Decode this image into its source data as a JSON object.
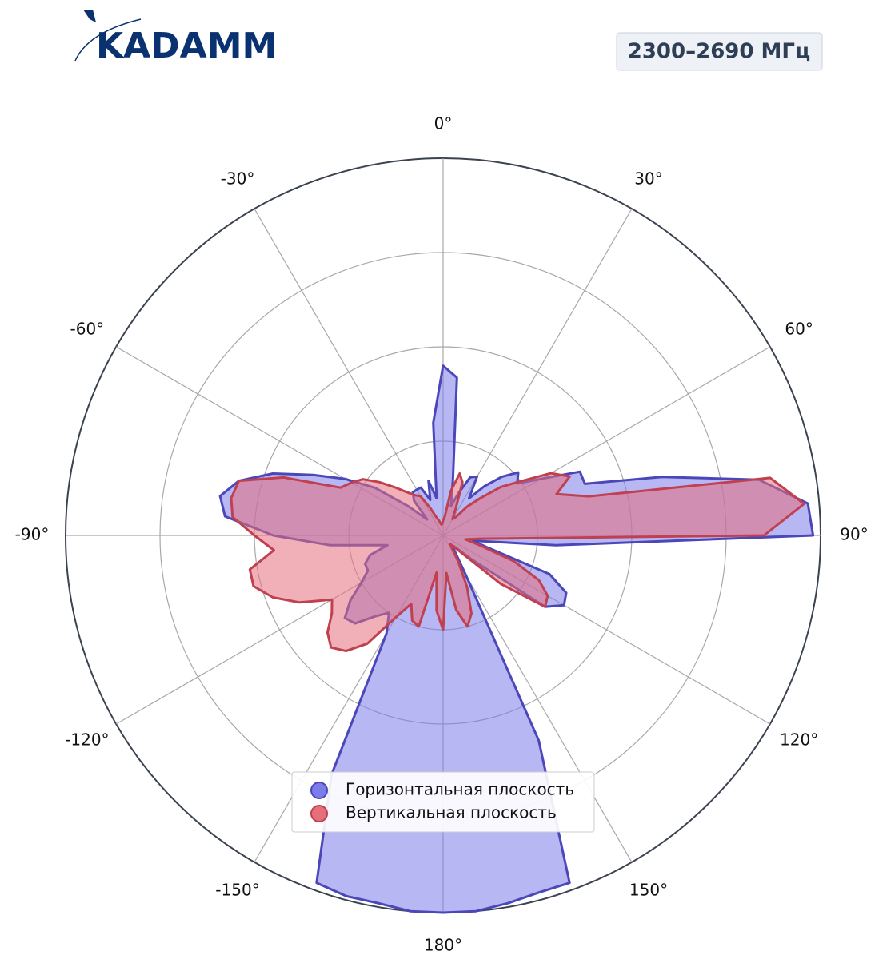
{
  "header": {
    "logo": "KADAMM",
    "badge": "2300–2690 МГц"
  },
  "chart_data": {
    "type": "polar",
    "theta": [
      0,
      5,
      10,
      15,
      20,
      25,
      30,
      35,
      40,
      45,
      50,
      55,
      60,
      65,
      70,
      75,
      80,
      85,
      90,
      95,
      100,
      105,
      110,
      115,
      120,
      125,
      130,
      135,
      140,
      145,
      150,
      155,
      160,
      165,
      170,
      175,
      180,
      185,
      190,
      195,
      200,
      205,
      210,
      215,
      220,
      225,
      230,
      235,
      240,
      245,
      250,
      255,
      260,
      265,
      270,
      275,
      280,
      285,
      290,
      295,
      300,
      305,
      310,
      315,
      320,
      325,
      330,
      335,
      340,
      345,
      350,
      355
    ],
    "series": [
      {
        "name": "Горизонтальная плоскость",
        "color": "#4b47b9",
        "fill": "#7b7bea",
        "values": [
          0.45,
          0.42,
          0.15,
          0.08,
          0.12,
          0.17,
          0.18,
          0.12,
          0.17,
          0.22,
          0.26,
          0.24,
          0.3,
          0.4,
          0.4,
          0.6,
          0.85,
          0.97,
          0.98,
          0.3,
          0.08,
          0.12,
          0.3,
          0.36,
          0.37,
          0.33,
          0.1,
          0.04,
          0.04,
          0.06,
          0.12,
          0.6,
          0.98,
          0.98,
          0.99,
          1.0,
          1.0,
          1.0,
          0.99,
          0.99,
          0.98,
          0.7,
          0.3,
          0.25,
          0.28,
          0.33,
          0.34,
          0.3,
          0.25,
          0.22,
          0.22,
          0.2,
          0.15,
          0.3,
          0.45,
          0.58,
          0.6,
          0.56,
          0.48,
          0.38,
          0.3,
          0.22,
          0.12,
          0.06,
          0.12,
          0.14,
          0.14,
          0.14,
          0.1,
          0.15,
          0.1,
          0.3
        ]
      },
      {
        "name": "Вертикальная плоскость",
        "color": "#c0404f",
        "fill": "#e5707c",
        "values": [
          0.04,
          0.05,
          0.12,
          0.17,
          0.15,
          0.08,
          0.05,
          0.06,
          0.1,
          0.14,
          0.2,
          0.25,
          0.33,
          0.37,
          0.32,
          0.4,
          0.88,
          0.96,
          0.85,
          0.1,
          0.06,
          0.1,
          0.2,
          0.28,
          0.32,
          0.33,
          0.2,
          0.05,
          0.03,
          0.04,
          0.08,
          0.15,
          0.22,
          0.25,
          0.2,
          0.1,
          0.25,
          0.2,
          0.1,
          0.25,
          0.24,
          0.2,
          0.25,
          0.35,
          0.4,
          0.42,
          0.4,
          0.36,
          0.34,
          0.42,
          0.48,
          0.52,
          0.52,
          0.45,
          0.5,
          0.56,
          0.57,
          0.56,
          0.45,
          0.3,
          0.28,
          0.26,
          0.22,
          0.18,
          0.15,
          0.13,
          0.12,
          0.08,
          0.05,
          0.04,
          0.03,
          0.03
        ]
      }
    ],
    "rlim": [
      0,
      1
    ],
    "rticks": [
      0.25,
      0.5,
      0.75,
      1
    ],
    "thetaticks": [
      {
        "value": 0,
        "label": "0°"
      },
      {
        "value": 30,
        "label": "30°"
      },
      {
        "value": 60,
        "label": "60°"
      },
      {
        "value": 90,
        "label": "90°"
      },
      {
        "value": 120,
        "label": "120°"
      },
      {
        "value": 150,
        "label": "150°"
      },
      {
        "value": 180,
        "label": "180°"
      },
      {
        "value": -150,
        "label": "-150°"
      },
      {
        "value": -120,
        "label": "-120°"
      },
      {
        "value": -90,
        "label": "-90°"
      },
      {
        "value": -60,
        "label": "-60°"
      },
      {
        "value": -30,
        "label": "-30°"
      }
    ],
    "grid": true,
    "legend": "bottom"
  }
}
